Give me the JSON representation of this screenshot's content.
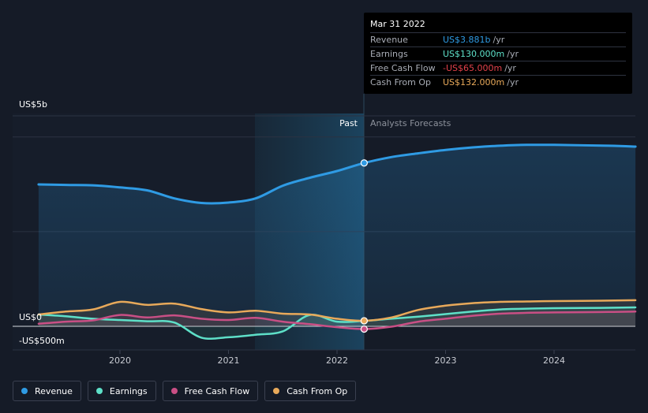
{
  "tooltip": {
    "date": "Mar 31 2022",
    "rows": [
      {
        "label": "Revenue",
        "value": "US$3.881b",
        "unit": "/yr",
        "color": "#2f9be4"
      },
      {
        "label": "Earnings",
        "value": "US$130.000m",
        "unit": "/yr",
        "color": "#5ee0c8"
      },
      {
        "label": "Free Cash Flow",
        "value": "-US$65.000m",
        "unit": "/yr",
        "color": "#e2414a"
      },
      {
        "label": "Cash From Op",
        "value": "US$132.000m",
        "unit": "/yr",
        "color": "#e8a95a"
      }
    ]
  },
  "chart_data": {
    "type": "line",
    "y_axis_labels": [
      "US$5b",
      "US$0",
      "-US$500m"
    ],
    "x_tick_labels": [
      "2020",
      "2021",
      "2022",
      "2023",
      "2024"
    ],
    "region_labels": {
      "past": "Past",
      "forecast": "Analysts Forecasts"
    },
    "ylim": [
      -500,
      5000
    ],
    "y_unit": "US$m",
    "forecast_start": 2022.25,
    "series": [
      {
        "name": "Revenue",
        "color": "#2f9be4",
        "x": [
          2019.25,
          2019.5,
          2019.75,
          2020.0,
          2020.25,
          2020.5,
          2020.75,
          2021.0,
          2021.25,
          2021.5,
          2021.75,
          2022.0,
          2022.25,
          2022.5,
          2022.75,
          2023.0,
          2023.25,
          2023.5,
          2023.75,
          2024.0,
          2024.5,
          2024.75
        ],
        "y": [
          3370,
          3360,
          3350,
          3300,
          3230,
          3040,
          2930,
          2940,
          3040,
          3340,
          3530,
          3690,
          3881,
          4020,
          4110,
          4190,
          4250,
          4290,
          4310,
          4310,
          4290,
          4270
        ]
      },
      {
        "name": "Earnings",
        "color": "#5ee0c8",
        "x": [
          2019.25,
          2019.5,
          2019.75,
          2020.0,
          2020.25,
          2020.5,
          2020.75,
          2021.0,
          2021.25,
          2021.5,
          2021.75,
          2022.0,
          2022.25,
          2022.5,
          2022.75,
          2023.0,
          2023.25,
          2023.5,
          2023.75,
          2024.0,
          2024.5,
          2024.75
        ],
        "y": [
          280,
          240,
          180,
          150,
          120,
          90,
          -270,
          -260,
          -200,
          -120,
          270,
          110,
          130,
          180,
          230,
          290,
          350,
          400,
          420,
          430,
          440,
          450
        ]
      },
      {
        "name": "Free Cash Flow",
        "color": "#c94f85",
        "x": [
          2019.25,
          2019.5,
          2019.75,
          2020.0,
          2020.25,
          2020.5,
          2020.75,
          2021.0,
          2021.25,
          2021.5,
          2021.75,
          2022.0,
          2022.25,
          2022.5,
          2022.75,
          2023.0,
          2023.25,
          2023.5,
          2023.75,
          2024.0,
          2024.5,
          2024.75
        ],
        "y": [
          60,
          110,
          140,
          270,
          210,
          260,
          180,
          150,
          200,
          110,
          50,
          -20,
          -65,
          -10,
          110,
          180,
          250,
          300,
          320,
          330,
          340,
          350
        ]
      },
      {
        "name": "Cash From Op",
        "color": "#e8a95a",
        "x": [
          2019.25,
          2019.5,
          2019.75,
          2020.0,
          2020.25,
          2020.5,
          2020.75,
          2021.0,
          2021.25,
          2021.5,
          2021.75,
          2022.0,
          2022.25,
          2022.5,
          2022.75,
          2023.0,
          2023.25,
          2023.5,
          2023.75,
          2024.0,
          2024.5,
          2024.75
        ],
        "y": [
          280,
          350,
          400,
          580,
          510,
          540,
          410,
          330,
          370,
          300,
          280,
          180,
          132,
          210,
          390,
          490,
          550,
          580,
          590,
          600,
          610,
          620
        ]
      }
    ]
  },
  "legend": [
    {
      "label": "Revenue",
      "color": "#2f9be4"
    },
    {
      "label": "Earnings",
      "color": "#5ee0c8"
    },
    {
      "label": "Free Cash Flow",
      "color": "#c94f85"
    },
    {
      "label": "Cash From Op",
      "color": "#e8a95a"
    }
  ]
}
